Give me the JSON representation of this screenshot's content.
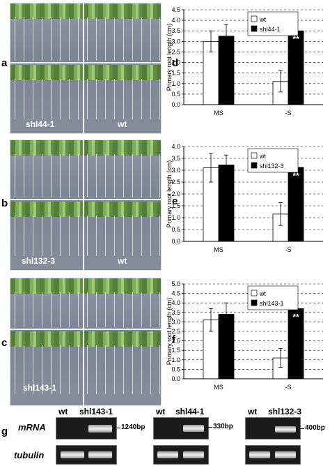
{
  "panel_letters": {
    "a": "a",
    "b": "b",
    "c": "c",
    "d": "d",
    "e": "e",
    "f": "f",
    "g": "g"
  },
  "photos": {
    "a": {
      "left_label": "shl44-1",
      "right_label": "wt"
    },
    "b": {
      "left_label": "shl132-3",
      "right_label": "wt"
    },
    "c": {
      "left_label": "shl143-1",
      "right_label": ""
    }
  },
  "chart_data": [
    {
      "type": "bar",
      "id": "d",
      "ylabel": "Primary root length (cm)",
      "ylim": [
        0,
        4.5
      ],
      "yticks": [
        "0.0",
        "0.5",
        "1.0",
        "1.5",
        "2.0",
        "2.5",
        "3.0",
        "3.5",
        "4.0",
        "4.5"
      ],
      "categories": [
        "MS",
        "-S"
      ],
      "series": [
        {
          "name": "wt",
          "color": "#ffffff",
          "values": [
            3.0,
            1.1
          ],
          "errors": [
            0.5,
            0.5
          ]
        },
        {
          "name": "shl44-1",
          "color": "#000000",
          "values": [
            3.25,
            3.5
          ],
          "errors": [
            0.55,
            0.5
          ]
        }
      ],
      "annotation": "**",
      "grid": true,
      "legend": "top-right"
    },
    {
      "type": "bar",
      "id": "e",
      "ylabel": "Primary root length (cm)",
      "ylim": [
        0,
        4.0
      ],
      "yticks": [
        "0.0",
        "0.5",
        "1.0",
        "1.5",
        "2.0",
        "2.5",
        "3.0",
        "3.5",
        "4.0"
      ],
      "categories": [
        "MS",
        "-S"
      ],
      "series": [
        {
          "name": "wt",
          "color": "#ffffff",
          "values": [
            3.1,
            1.15
          ],
          "errors": [
            0.6,
            0.48
          ]
        },
        {
          "name": "shl132-3",
          "color": "#000000",
          "values": [
            3.22,
            3.12
          ],
          "errors": [
            0.42,
            0.52
          ]
        }
      ],
      "annotation": "**",
      "grid": true,
      "legend": "top-right"
    },
    {
      "type": "bar",
      "id": "f",
      "ylabel": "Primary root length (cm)",
      "ylim": [
        0,
        5.0
      ],
      "yticks": [
        "0.0",
        "0.5",
        "1.0",
        "1.5",
        "2.0",
        "2.5",
        "3.0",
        "3.5",
        "4.0",
        "4.5",
        "5.0"
      ],
      "categories": [
        "MS",
        "-S"
      ],
      "series": [
        {
          "name": "wt",
          "color": "#ffffff",
          "values": [
            3.1,
            1.1
          ],
          "errors": [
            0.6,
            0.5
          ]
        },
        {
          "name": "shl143-1",
          "color": "#000000",
          "values": [
            3.4,
            3.7
          ],
          "errors": [
            0.6,
            0.65
          ]
        }
      ],
      "annotation": "**",
      "grid": true,
      "legend": "top-right"
    }
  ],
  "gels": {
    "row_labels": {
      "mrna": "mRNA",
      "tubulin": "tubulin"
    },
    "panels": [
      {
        "wt": "wt",
        "mutant": "shl143-1",
        "size": "1240bp"
      },
      {
        "wt": "wt",
        "mutant": "shl44-1",
        "size": "330bp"
      },
      {
        "wt": "wt",
        "mutant": "shl132-3",
        "size": "400bp"
      }
    ]
  }
}
